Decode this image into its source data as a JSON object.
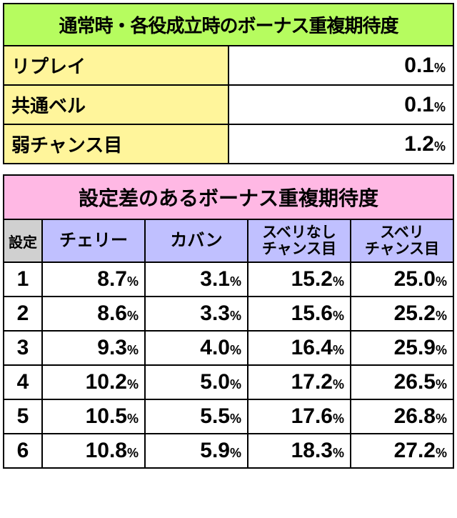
{
  "table1": {
    "title": "通常時・各役成立時のボーナス重複期待度",
    "rows": [
      {
        "label": "リプレイ",
        "value": "0.1"
      },
      {
        "label": "共通ベル",
        "value": "0.1"
      },
      {
        "label": "弱チャンス目",
        "value": "1.2"
      }
    ],
    "pct_suffix": "%",
    "title_bg": "#b6fc5f",
    "label_bg": "#fff59b",
    "value_bg": "#ffffff"
  },
  "table2": {
    "title": "設定差のあるボーナス重複期待度",
    "setting_header": "設定",
    "columns": [
      "チェリー",
      "カバン",
      "スベリなし\nチャンス目",
      "スベリ\nチャンス目"
    ],
    "rows": [
      {
        "setting": "1",
        "values": [
          "8.7",
          "3.1",
          "15.2",
          "25.0"
        ]
      },
      {
        "setting": "2",
        "values": [
          "8.6",
          "3.3",
          "15.6",
          "25.2"
        ]
      },
      {
        "setting": "3",
        "values": [
          "9.3",
          "4.0",
          "16.4",
          "25.9"
        ]
      },
      {
        "setting": "4",
        "values": [
          "10.2",
          "5.0",
          "17.2",
          "26.5"
        ]
      },
      {
        "setting": "5",
        "values": [
          "10.5",
          "5.5",
          "17.6",
          "26.8"
        ]
      },
      {
        "setting": "6",
        "values": [
          "10.8",
          "5.9",
          "18.3",
          "27.2"
        ]
      }
    ],
    "pct_suffix": "%",
    "title_bg": "#ffb8e4",
    "setting_hdr_bg": "#d0d0d0",
    "col_hdr_bg": "#c0c0ff",
    "cell_bg": "#ffffff"
  }
}
